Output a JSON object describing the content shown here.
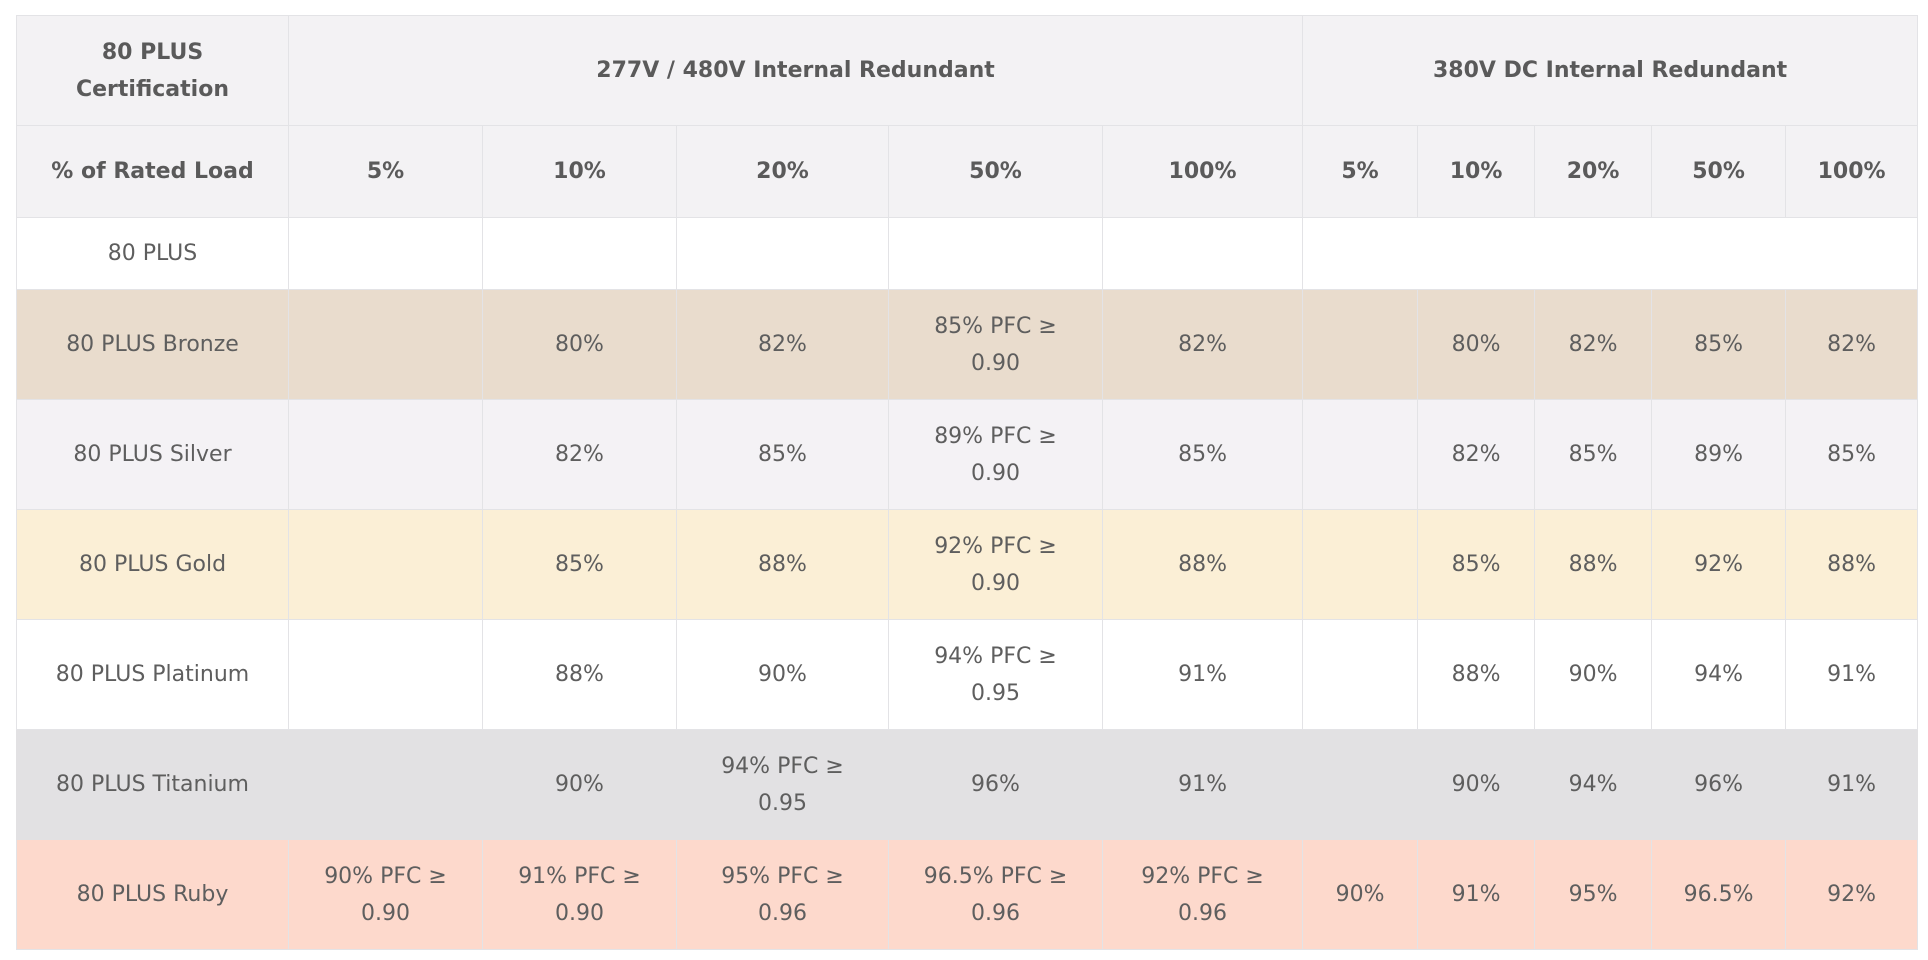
{
  "header": {
    "cert_label": "80 PLUS Certification",
    "group_ac": "277V / 480V Internal Redundant",
    "group_dc": "380V DC Internal Redundant",
    "load_label": "% of Rated Load",
    "ac_loads": [
      "5%",
      "10%",
      "20%",
      "50%",
      "100%"
    ],
    "dc_loads": [
      "5%",
      "10%",
      "20%",
      "50%",
      "100%"
    ]
  },
  "rows": [
    {
      "tier": "80 PLUS",
      "ac": [
        "",
        "",
        "",
        "",
        ""
      ],
      "dc": [
        "",
        "",
        "",
        "",
        ""
      ]
    },
    {
      "tier": "80 PLUS Bronze",
      "ac": [
        "",
        "80%",
        "82%",
        "85% PFC ≥ 0.90",
        "82%"
      ],
      "dc": [
        "",
        "80%",
        "82%",
        "85%",
        "82%"
      ]
    },
    {
      "tier": "80 PLUS Silver",
      "ac": [
        "",
        "82%",
        "85%",
        "89% PFC ≥ 0.90",
        "85%"
      ],
      "dc": [
        "",
        "82%",
        "85%",
        "89%",
        "85%"
      ]
    },
    {
      "tier": "80 PLUS Gold",
      "ac": [
        "",
        "85%",
        "88%",
        "92% PFC ≥ 0.90",
        "88%"
      ],
      "dc": [
        "",
        "85%",
        "88%",
        "92%",
        "88%"
      ]
    },
    {
      "tier": "80 PLUS Platinum",
      "ac": [
        "",
        "88%",
        "90%",
        "94% PFC ≥ 0.95",
        "91%"
      ],
      "dc": [
        "",
        "88%",
        "90%",
        "94%",
        "91%"
      ]
    },
    {
      "tier": "80 PLUS Titanium",
      "ac": [
        "",
        "90%",
        "94% PFC ≥ 0.95",
        "96%",
        "91%"
      ],
      "dc": [
        "",
        "90%",
        "94%",
        "96%",
        "91%"
      ]
    },
    {
      "tier": "80 PLUS Ruby",
      "ac": [
        "90% PFC ≥ 0.90",
        "91% PFC ≥ 0.90",
        "95% PFC ≥ 0.96",
        "96.5% PFC ≥ 0.96",
        "92% PFC ≥ 0.96"
      ],
      "dc": [
        "90%",
        "91%",
        "95%",
        "96.5%",
        "92%"
      ]
    }
  ],
  "colors": {
    "header_bg": "#f3f2f4",
    "bronze": "#e9dccd",
    "silver": "#f4f2f5",
    "gold": "#fbefd6",
    "platinum": "#ffffff",
    "titanium": "#e2e1e3",
    "ruby": "#fdd9cc",
    "text": "#5e5e5e"
  }
}
